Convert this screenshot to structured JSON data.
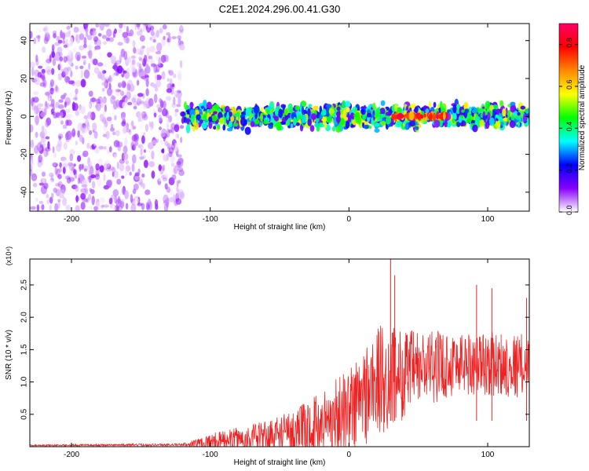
{
  "title": "C2E1.2024.296.00.41.G30",
  "chart_data": [
    {
      "type": "heatmap",
      "title": "C2E1.2024.296.00.41.G30",
      "xlabel": "Height of straight line (km)",
      "ylabel": "Frequency (Hz)",
      "xlim": [
        -230,
        130
      ],
      "ylim": [
        -50,
        49
      ],
      "xticks": [
        "-200",
        "-100",
        "0",
        "100"
      ],
      "yticks": [
        "-40",
        "-20",
        "0",
        "20",
        "40"
      ],
      "colorbar": {
        "label": "Normalized spectral amplitude",
        "range": [
          0,
          0.9
        ],
        "ticks": [
          "0.0",
          "0.2",
          "0.4",
          "0.6",
          "0.8"
        ],
        "colors": [
          "#ffffff",
          "#8800ff",
          "#0000ff",
          "#00ffff",
          "#00ff00",
          "#ffff00",
          "#ff8800",
          "#ff0000",
          "#ff0066"
        ]
      },
      "regions": [
        {
          "x_range": [
            -230,
            -120
          ],
          "freq_range": [
            -50,
            49
          ],
          "amplitude": [
            0.0,
            0.12
          ]
        },
        {
          "x_range": [
            -120,
            130
          ],
          "freq_range": [
            -8,
            8
          ],
          "amplitude": [
            0.1,
            0.6
          ]
        },
        {
          "x_range": [
            30,
            70
          ],
          "freq_range": [
            -1,
            1
          ],
          "amplitude": [
            0.6,
            0.9
          ]
        }
      ]
    },
    {
      "type": "line",
      "xlabel": "Height of straight line (km)",
      "ylabel": "SNR (10 * v/v)",
      "y_multiplier": "(x10⁴)",
      "xlim": [
        -230,
        130
      ],
      "ylim": [
        0,
        2.9
      ],
      "xticks": [
        "-200",
        "-100",
        "0",
        "100"
      ],
      "yticks": [
        "0.5",
        "1.0",
        "1.5",
        "2.0",
        "2.5"
      ],
      "color": "#ee2222",
      "envelope": [
        {
          "x": -230,
          "mean": 0.02,
          "spread": 0.01
        },
        {
          "x": -120,
          "mean": 0.03,
          "spread": 0.02
        },
        {
          "x": -100,
          "mean": 0.08,
          "spread": 0.12
        },
        {
          "x": -60,
          "mean": 0.15,
          "spread": 0.25
        },
        {
          "x": -30,
          "mean": 0.25,
          "spread": 0.45
        },
        {
          "x": 0,
          "mean": 0.55,
          "spread": 0.7
        },
        {
          "x": 20,
          "mean": 1.0,
          "spread": 0.9
        },
        {
          "x": 50,
          "mean": 1.2,
          "spread": 0.6
        },
        {
          "x": 80,
          "mean": 1.3,
          "spread": 0.5
        },
        {
          "x": 130,
          "mean": 1.25,
          "spread": 0.5
        }
      ],
      "peaks": [
        {
          "x": 30,
          "y": 2.9
        },
        {
          "x": 33,
          "y": 2.65
        },
        {
          "x": 92,
          "y": 2.5
        },
        {
          "x": 103,
          "y": 2.45
        },
        {
          "x": 128,
          "y": 2.3
        }
      ]
    }
  ]
}
